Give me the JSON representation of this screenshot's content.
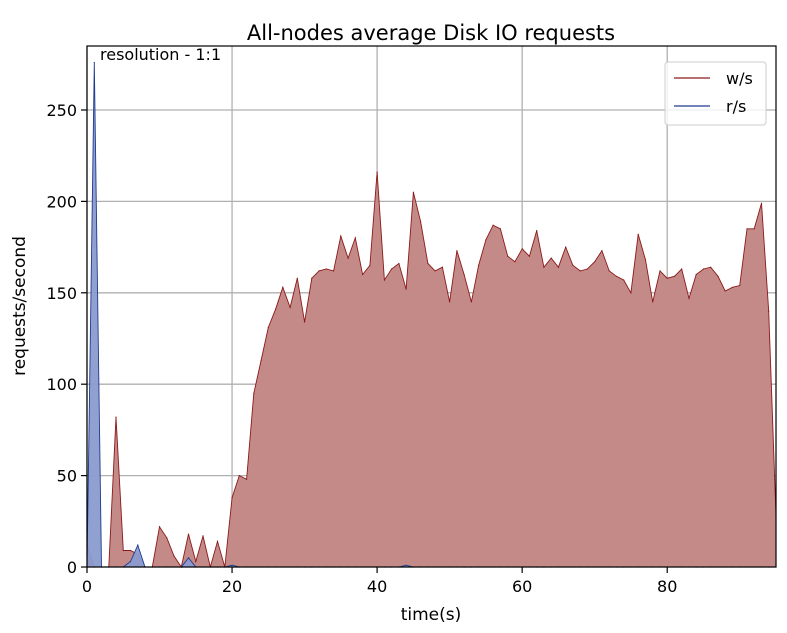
{
  "chart_data": {
    "type": "area",
    "title": "All-nodes average Disk IO requests",
    "annotation": "resolution - 1:1",
    "xlabel": "time(s)",
    "ylabel": "requests/second",
    "xlim": [
      0,
      95
    ],
    "ylim": [
      0,
      285
    ],
    "xticks": [
      0,
      20,
      40,
      60,
      80
    ],
    "yticks": [
      0,
      50,
      100,
      150,
      200,
      250
    ],
    "grid": true,
    "legend_position": "top-right",
    "series": [
      {
        "name": "w/s",
        "line_color": "#8b1a1a",
        "fill_color": "#c48a88",
        "x": [
          0,
          1,
          2,
          3,
          4,
          5,
          6,
          7,
          8,
          9,
          10,
          11,
          12,
          13,
          14,
          15,
          16,
          17,
          18,
          19,
          20,
          21,
          22,
          23,
          24,
          25,
          26,
          27,
          28,
          29,
          30,
          31,
          32,
          33,
          34,
          35,
          36,
          37,
          38,
          39,
          40,
          41,
          42,
          43,
          44,
          45,
          46,
          47,
          48,
          49,
          50,
          51,
          52,
          53,
          54,
          55,
          56,
          57,
          58,
          59,
          60,
          61,
          62,
          63,
          64,
          65,
          66,
          67,
          68,
          69,
          70,
          71,
          72,
          73,
          74,
          75,
          76,
          77,
          78,
          79,
          80,
          81,
          82,
          83,
          84,
          85,
          86,
          87,
          88,
          89,
          90,
          91,
          92,
          93,
          94,
          95
        ],
        "values": [
          12,
          0,
          0,
          0,
          82,
          9,
          9,
          7,
          0,
          0,
          22,
          16,
          6,
          0,
          18,
          3,
          17,
          0,
          14,
          0,
          38,
          50,
          48,
          95,
          113,
          131,
          141,
          153,
          142,
          158,
          134,
          158,
          162,
          163,
          162,
          181,
          169,
          180,
          160,
          165,
          216,
          157,
          163,
          166,
          152,
          205,
          189,
          166,
          162,
          164,
          145,
          173,
          160,
          145,
          165,
          179,
          187,
          185,
          170,
          167,
          174,
          170,
          184,
          164,
          169,
          164,
          175,
          165,
          162,
          163,
          167,
          173,
          162,
          159,
          157,
          150,
          182,
          168,
          145,
          162,
          158,
          159,
          163,
          147,
          160,
          163,
          164,
          159,
          151,
          153,
          154,
          185,
          185,
          199,
          140,
          28
        ]
      },
      {
        "name": "r/s",
        "line_color": "#1f3b8f",
        "fill_color": "#8a9bcf",
        "x": [
          0,
          1,
          2,
          3,
          4,
          5,
          6,
          7,
          8,
          9,
          10,
          11,
          12,
          13,
          14,
          15,
          16,
          17,
          18,
          19,
          20,
          21,
          22,
          23,
          24,
          25,
          26,
          27,
          28,
          29,
          30,
          31,
          32,
          33,
          34,
          35,
          36,
          37,
          38,
          39,
          40,
          41,
          42,
          43,
          44,
          45,
          46,
          47,
          48,
          49,
          50,
          51,
          52,
          53,
          54,
          55,
          56,
          57,
          58,
          59,
          60,
          61,
          62,
          63,
          64,
          65,
          66,
          67,
          68,
          69,
          70,
          71,
          72,
          73,
          74,
          75,
          76,
          77,
          78,
          79,
          80,
          81,
          82,
          83,
          84,
          85,
          86,
          87,
          88,
          89,
          90,
          91,
          92,
          93,
          94,
          95
        ],
        "values": [
          0,
          276,
          0,
          0,
          0,
          0,
          3,
          12,
          0,
          0,
          0,
          0,
          0,
          0,
          5,
          0,
          0,
          0,
          0,
          0,
          1,
          0,
          0,
          0,
          0,
          0,
          0,
          0,
          0,
          0,
          0,
          0,
          0,
          0,
          0,
          0,
          0,
          0,
          0,
          0,
          0,
          0,
          0,
          0,
          1,
          0,
          0,
          0,
          0,
          0,
          0,
          0,
          0,
          0,
          0,
          0,
          0,
          0,
          0,
          0,
          0,
          0,
          0,
          0,
          0,
          0,
          0,
          0,
          0,
          0,
          0,
          0,
          0,
          0,
          0,
          0,
          0,
          0,
          0,
          0,
          0,
          0,
          0,
          0,
          0,
          0,
          0,
          0,
          0,
          0,
          0,
          0,
          0,
          0,
          0,
          0
        ]
      }
    ]
  }
}
